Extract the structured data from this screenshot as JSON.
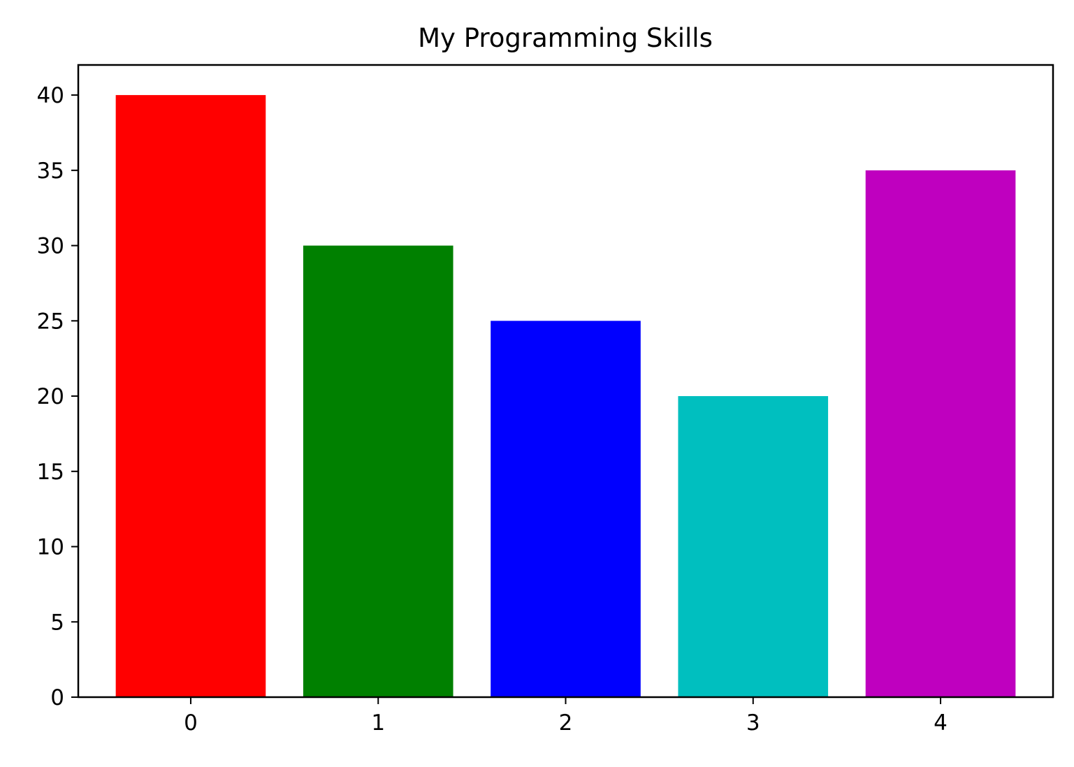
{
  "chart_data": {
    "type": "bar",
    "title": "My Programming Skills",
    "xlabel": "",
    "ylabel": "",
    "categories": [
      "0",
      "1",
      "2",
      "3",
      "4"
    ],
    "values": [
      40,
      30,
      25,
      20,
      35
    ],
    "colors": [
      "#ff0000",
      "#008000",
      "#0000ff",
      "#00bfbf",
      "#bf00bf"
    ],
    "xlim": [
      -0.6,
      4.6
    ],
    "ylim": [
      0,
      42
    ],
    "yticks": [
      "0",
      "5",
      "10",
      "15",
      "20",
      "25",
      "30",
      "35",
      "40"
    ],
    "bar_width": 0.8,
    "grid": false,
    "legend": "none"
  }
}
